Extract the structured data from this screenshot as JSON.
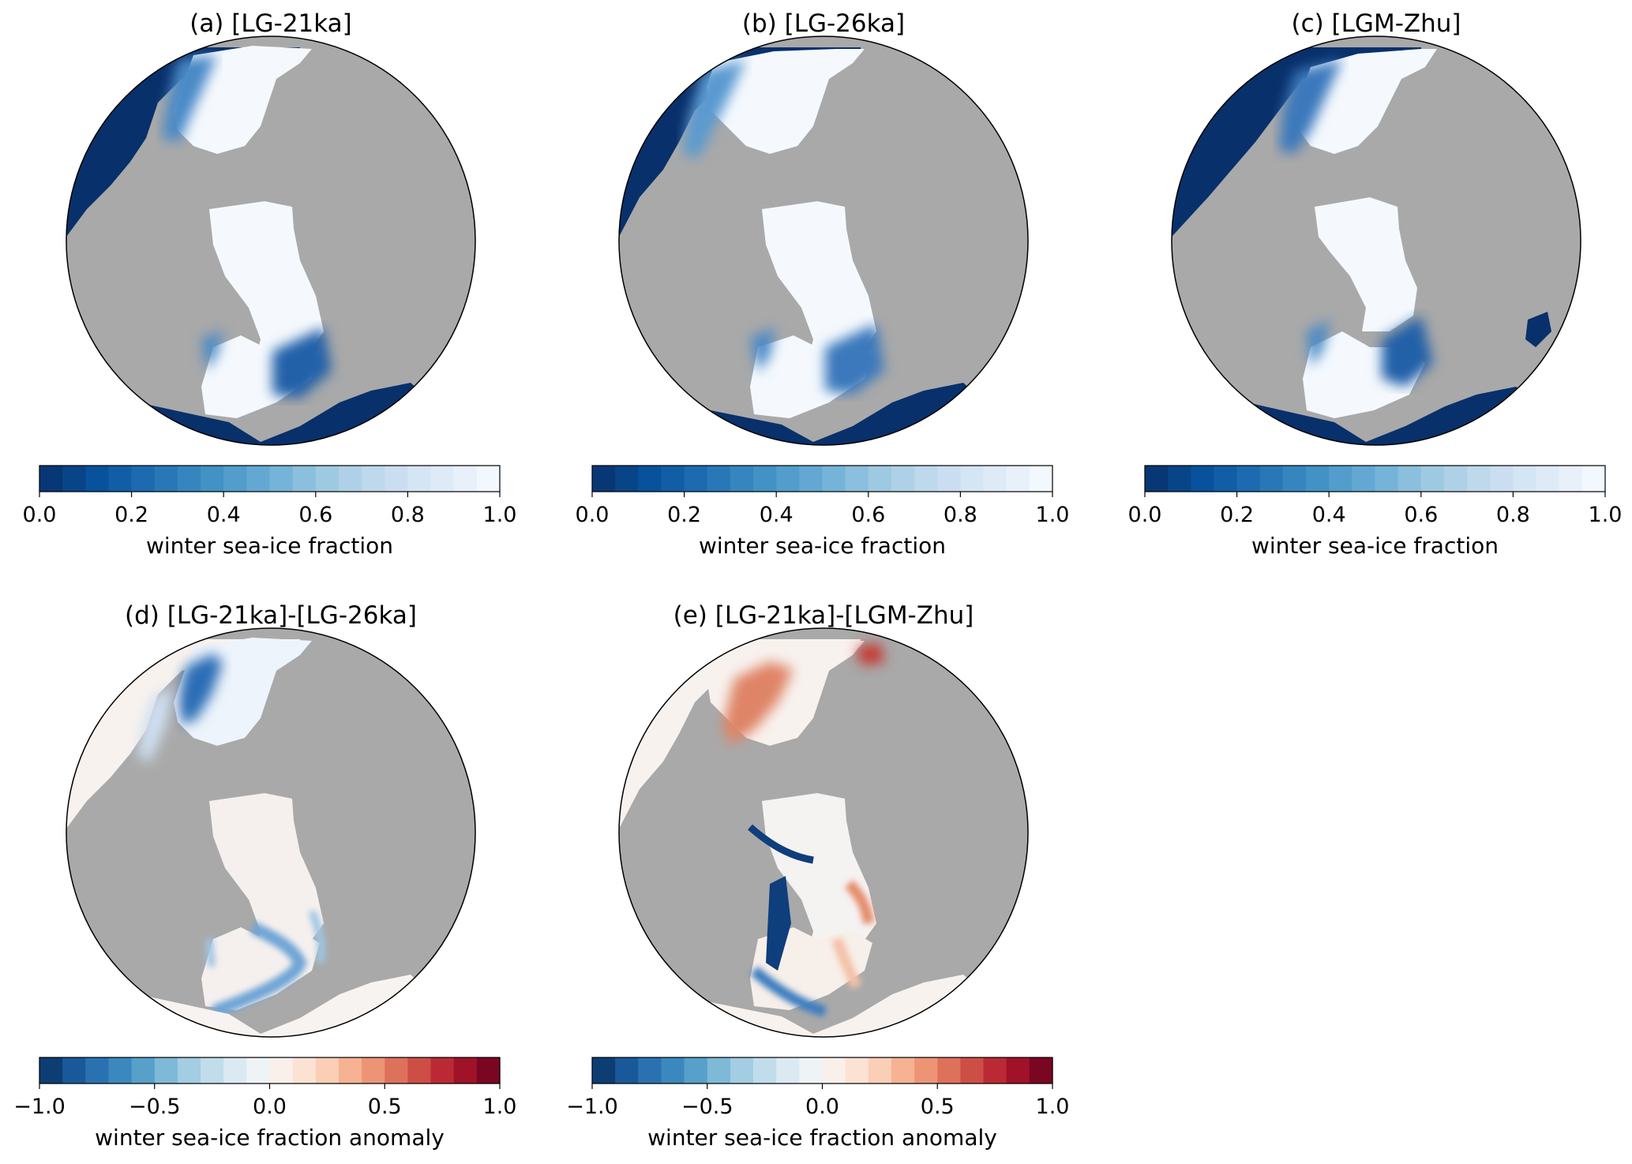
{
  "figure": {
    "panels": [
      {
        "id": "a",
        "title": "(a) [LG-21ka]",
        "kind": "fraction",
        "colorbar_label": "winter sea-ice fraction",
        "ticks": [
          "0.0",
          "0.2",
          "0.4",
          "0.6",
          "0.8",
          "1.0"
        ]
      },
      {
        "id": "b",
        "title": "(b) [LG-26ka]",
        "kind": "fraction",
        "colorbar_label": "winter sea-ice fraction",
        "ticks": [
          "0.0",
          "0.2",
          "0.4",
          "0.6",
          "0.8",
          "1.0"
        ]
      },
      {
        "id": "c",
        "title": "(c) [LGM-Zhu]",
        "kind": "fraction",
        "colorbar_label": "winter sea-ice fraction",
        "ticks": [
          "0.0",
          "0.2",
          "0.4",
          "0.6",
          "0.8",
          "1.0"
        ]
      },
      {
        "id": "d",
        "title": "(d) [LG-21ka]-[LG-26ka]",
        "kind": "anomaly",
        "colorbar_label": "winter sea-ice fraction anomaly",
        "ticks": [
          "−1.0",
          "−0.5",
          "0.0",
          "0.5",
          "1.0"
        ]
      },
      {
        "id": "e",
        "title": "(e) [LG-21ka]-[LGM-Zhu]",
        "kind": "anomaly",
        "colorbar_label": "winter sea-ice fraction anomaly",
        "ticks": [
          "−1.0",
          "−0.5",
          "0.0",
          "0.5",
          "1.0"
        ]
      }
    ]
  },
  "chart_data": [
    {
      "type": "heatmap",
      "title": "(a) [LG-21ka]",
      "colorbar": {
        "label": "winter sea-ice fraction",
        "range": [
          0.0,
          1.0
        ],
        "ticks": [
          0.0,
          0.2,
          0.4,
          0.6,
          0.8,
          1.0
        ],
        "levels": 20,
        "colormap": "Blues_r"
      }
    },
    {
      "type": "heatmap",
      "title": "(b) [LG-26ka]",
      "colorbar": {
        "label": "winter sea-ice fraction",
        "range": [
          0.0,
          1.0
        ],
        "ticks": [
          0.0,
          0.2,
          0.4,
          0.6,
          0.8,
          1.0
        ],
        "levels": 20,
        "colormap": "Blues_r"
      }
    },
    {
      "type": "heatmap",
      "title": "(c) [LGM-Zhu]",
      "colorbar": {
        "label": "winter sea-ice fraction",
        "range": [
          0.0,
          1.0
        ],
        "ticks": [
          0.0,
          0.2,
          0.4,
          0.6,
          0.8,
          1.0
        ],
        "levels": 20,
        "colormap": "Blues_r"
      }
    },
    {
      "type": "heatmap",
      "title": "(d) [LG-21ka]-[LG-26ka]",
      "colorbar": {
        "label": "winter sea-ice fraction anomaly",
        "range": [
          -1.0,
          1.0
        ],
        "ticks": [
          -1.0,
          -0.5,
          0.0,
          0.5,
          1.0
        ],
        "levels": 20,
        "colormap": "RdBu_r"
      }
    },
    {
      "type": "heatmap",
      "title": "(e) [LG-21ka]-[LGM-Zhu]",
      "colorbar": {
        "label": "winter sea-ice fraction anomaly",
        "range": [
          -1.0,
          1.0
        ],
        "ticks": [
          -1.0,
          -0.5,
          0.0,
          0.5,
          1.0
        ],
        "levels": 20,
        "colormap": "RdBu_r"
      }
    }
  ],
  "colors": {
    "land": "#a9a9a9",
    "deep_ocean": "#08306b",
    "full_ice": "#f5f9fe",
    "anomaly_neutral": "#f8f2ee"
  }
}
